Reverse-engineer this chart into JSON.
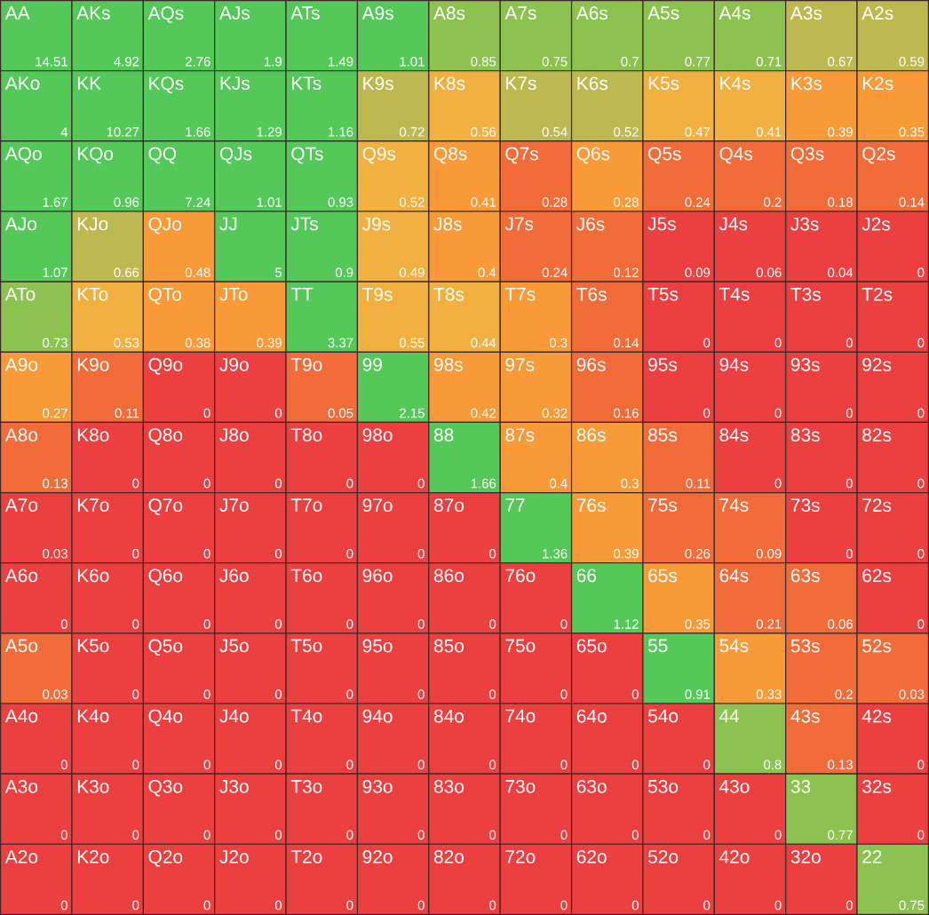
{
  "chart_data": {
    "type": "heatmap",
    "categories": [
      null,
      null,
      null,
      null,
      null,
      null,
      null,
      null,
      null,
      null,
      null,
      null,
      null
    ],
    "y_categories": [
      null,
      null,
      null,
      null,
      null,
      null,
      null,
      null,
      null,
      null,
      null,
      null,
      null
    ],
    "data_labels": true,
    "cells": [
      [
        14.51,
        4.92,
        2.76,
        1.9,
        1.49,
        1.01,
        0.85,
        0.75,
        0.7,
        0.77,
        0.71,
        0.67,
        0.59
      ],
      [
        4,
        10.27,
        1.66,
        1.29,
        1.16,
        0.72,
        0.56,
        0.54,
        0.52,
        0.47,
        0.41,
        0.39,
        0.35
      ],
      [
        1.67,
        0.96,
        7.24,
        1.01,
        0.93,
        0.52,
        0.41,
        0.28,
        0.28,
        0.24,
        0.2,
        0.18,
        0.14
      ],
      [
        1.07,
        0.66,
        0.48,
        5,
        0.9,
        0.49,
        0.4,
        0.24,
        0.12,
        0.09,
        0.06,
        0.04,
        0
      ],
      [
        0.73,
        0.53,
        0.38,
        0.39,
        3.37,
        0.55,
        0.44,
        0.3,
        0.14,
        0,
        0,
        0,
        0
      ],
      [
        0.27,
        0.11,
        0,
        0,
        0.05,
        2.15,
        0.42,
        0.32,
        0.16,
        0,
        0,
        0,
        0
      ],
      [
        0.13,
        0,
        0,
        0,
        0,
        0,
        1.66,
        0.4,
        0.3,
        0.11,
        0,
        0,
        0
      ],
      [
        0.03,
        0,
        0,
        0,
        0,
        0,
        0,
        1.36,
        0.39,
        0.26,
        0.09,
        0,
        0
      ],
      [
        0,
        0,
        0,
        0,
        0,
        0,
        0,
        0,
        1.12,
        0.35,
        0.21,
        0.06,
        0
      ],
      [
        0.03,
        0,
        0,
        0,
        0,
        0,
        0,
        0,
        0,
        0.91,
        0.33,
        0.2,
        0.03
      ],
      [
        0,
        0,
        0,
        0,
        0,
        0,
        0,
        0,
        0,
        0,
        0.8,
        0.13,
        0
      ],
      [
        0,
        0,
        0,
        0,
        0,
        0,
        0,
        0,
        0,
        0,
        0,
        0.77,
        0
      ],
      [
        0,
        0,
        0,
        0,
        0,
        0,
        0,
        0,
        0,
        0,
        0,
        0,
        0.75
      ]
    ],
    "annotations": [
      [
        "AA",
        "AKs",
        "AQs",
        "AJs",
        "ATs",
        "A9s",
        "A8s",
        "A7s",
        "A6s",
        "A5s",
        "A4s",
        "A3s",
        "A2s"
      ],
      [
        "AKo",
        "KK",
        "KQs",
        "KJs",
        "KTs",
        "K9s",
        "K8s",
        "K7s",
        "K6s",
        "K5s",
        "K4s",
        "K3s",
        "K2s"
      ],
      [
        "AQo",
        "KQo",
        "QQ",
        "QJs",
        "QTs",
        "Q9s",
        "Q8s",
        "Q7s",
        "Q6s",
        "Q5s",
        "Q4s",
        "Q3s",
        "Q2s"
      ],
      [
        "AJo",
        "KJo",
        "QJo",
        "JJ",
        "JTs",
        "J9s",
        "J8s",
        "J7s",
        "J6s",
        "J5s",
        "J4s",
        "J3s",
        "J2s"
      ],
      [
        "ATo",
        "KTo",
        "QTo",
        "JTo",
        "TT",
        "T9s",
        "T8s",
        "T7s",
        "T6s",
        "T5s",
        "T4s",
        "T3s",
        "T2s"
      ],
      [
        "A9o",
        "K9o",
        "Q9o",
        "J9o",
        "T9o",
        "99",
        "98s",
        "97s",
        "96s",
        "95s",
        "94s",
        "93s",
        "92s"
      ],
      [
        "A8o",
        "K8o",
        "Q8o",
        "J8o",
        "T8o",
        "98o",
        "88",
        "87s",
        "86s",
        "85s",
        "84s",
        "83s",
        "82s"
      ],
      [
        "A7o",
        "K7o",
        "Q7o",
        "J7o",
        "T7o",
        "97o",
        "87o",
        "77",
        "76s",
        "75s",
        "74s",
        "73s",
        "72s"
      ],
      [
        "A6o",
        "K6o",
        "Q6o",
        "J6o",
        "T6o",
        "96o",
        "86o",
        "76o",
        "66",
        "65s",
        "64s",
        "63s",
        "62s"
      ],
      [
        "A5o",
        "K5o",
        "Q5o",
        "J5o",
        "T5o",
        "95o",
        "85o",
        "75o",
        "65o",
        "55",
        "54s",
        "53s",
        "52s"
      ],
      [
        "A4o",
        "K4o",
        "Q4o",
        "J4o",
        "T4o",
        "94o",
        "84o",
        "74o",
        "64o",
        "54o",
        "44",
        "43s",
        "42s"
      ],
      [
        "A3o",
        "K3o",
        "Q3o",
        "J3o",
        "T3o",
        "93o",
        "83o",
        "73o",
        "63o",
        "53o",
        "43o",
        "33",
        "32s"
      ],
      [
        "A2o",
        "K2o",
        "Q2o",
        "J2o",
        "T2o",
        "92o",
        "82o",
        "72o",
        "62o",
        "52o",
        "42o",
        "32o",
        "22"
      ]
    ],
    "colors": [
      [
        "#55c85a",
        "#55c85a",
        "#55c85a",
        "#55c85a",
        "#55c85a",
        "#55c85a",
        "#8cc350",
        "#8cc350",
        "#8cc350",
        "#8cc350",
        "#8cc350",
        "#bdb84f",
        "#bdb84f"
      ],
      [
        "#55c85a",
        "#55c85a",
        "#55c85a",
        "#55c85a",
        "#55c85a",
        "#bdb84f",
        "#f2b040",
        "#bdb84f",
        "#bdb84f",
        "#f2b040",
        "#f2b040",
        "#f99a38",
        "#f99a38"
      ],
      [
        "#55c85a",
        "#55c85a",
        "#55c85a",
        "#55c85a",
        "#55c85a",
        "#f2b040",
        "#f99a38",
        "#f26c3a",
        "#f99a38",
        "#f26c3a",
        "#f26c3a",
        "#f26c3a",
        "#f26c3a"
      ],
      [
        "#55c85a",
        "#bdb84f",
        "#f99a38",
        "#55c85a",
        "#55c85a",
        "#f2b040",
        "#f99a38",
        "#f26c3a",
        "#f26c3a",
        "#ec3f3f",
        "#ec3f3f",
        "#ec3f3f",
        "#ec3f3f"
      ],
      [
        "#8cc350",
        "#f2b040",
        "#f99a38",
        "#f99a38",
        "#55c85a",
        "#f2b040",
        "#f2b040",
        "#f99a38",
        "#f26c3a",
        "#ec3f3f",
        "#ec3f3f",
        "#ec3f3f",
        "#ec3f3f"
      ],
      [
        "#f99a38",
        "#f26c3a",
        "#ec3f3f",
        "#ec3f3f",
        "#f26c3a",
        "#55c85a",
        "#f99a38",
        "#f99a38",
        "#f26c3a",
        "#ec3f3f",
        "#ec3f3f",
        "#ec3f3f",
        "#ec3f3f"
      ],
      [
        "#f26c3a",
        "#ec3f3f",
        "#ec3f3f",
        "#ec3f3f",
        "#ec3f3f",
        "#ec3f3f",
        "#55c85a",
        "#f99a38",
        "#f99a38",
        "#f26c3a",
        "#ec3f3f",
        "#ec3f3f",
        "#ec3f3f"
      ],
      [
        "#ec3f3f",
        "#ec3f3f",
        "#ec3f3f",
        "#ec3f3f",
        "#ec3f3f",
        "#ec3f3f",
        "#ec3f3f",
        "#55c85a",
        "#f99a38",
        "#f26c3a",
        "#f26c3a",
        "#ec3f3f",
        "#ec3f3f"
      ],
      [
        "#ec3f3f",
        "#ec3f3f",
        "#ec3f3f",
        "#ec3f3f",
        "#ec3f3f",
        "#ec3f3f",
        "#ec3f3f",
        "#ec3f3f",
        "#55c85a",
        "#f99a38",
        "#f26c3a",
        "#f26c3a",
        "#ec3f3f"
      ],
      [
        "#f26c3a",
        "#ec3f3f",
        "#ec3f3f",
        "#ec3f3f",
        "#ec3f3f",
        "#ec3f3f",
        "#ec3f3f",
        "#ec3f3f",
        "#ec3f3f",
        "#55c85a",
        "#f99a38",
        "#f26c3a",
        "#f26c3a"
      ],
      [
        "#ec3f3f",
        "#ec3f3f",
        "#ec3f3f",
        "#ec3f3f",
        "#ec3f3f",
        "#ec3f3f",
        "#ec3f3f",
        "#ec3f3f",
        "#ec3f3f",
        "#ec3f3f",
        "#8cc350",
        "#f26c3a",
        "#ec3f3f"
      ],
      [
        "#ec3f3f",
        "#ec3f3f",
        "#ec3f3f",
        "#ec3f3f",
        "#ec3f3f",
        "#ec3f3f",
        "#ec3f3f",
        "#ec3f3f",
        "#ec3f3f",
        "#ec3f3f",
        "#ec3f3f",
        "#8cc350",
        "#ec3f3f"
      ],
      [
        "#ec3f3f",
        "#ec3f3f",
        "#ec3f3f",
        "#ec3f3f",
        "#ec3f3f",
        "#ec3f3f",
        "#ec3f3f",
        "#ec3f3f",
        "#ec3f3f",
        "#ec3f3f",
        "#ec3f3f",
        "#ec3f3f",
        "#8cc350"
      ]
    ]
  }
}
